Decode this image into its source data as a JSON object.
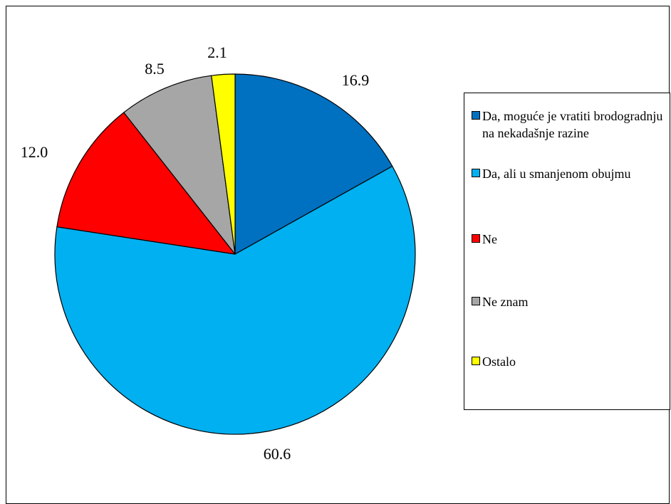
{
  "chart_data": {
    "type": "pie",
    "title": "",
    "start_angle_deg": 0,
    "direction": "clockwise",
    "slices": [
      {
        "label": "Da, moguće je vratiti brodogradnju na nekadašnje razine",
        "value": 16.9,
        "value_label": "16.9",
        "color": "#0070C0"
      },
      {
        "label": "Da, ali u smanjenom obujmu",
        "value": 60.6,
        "value_label": "60.6",
        "color": "#00B0F0"
      },
      {
        "label": "Ne",
        "value": 12.0,
        "value_label": "12.0",
        "color": "#FF0000"
      },
      {
        "label": "Ne znam",
        "value": 8.5,
        "value_label": "8.5",
        "color": "#A6A6A6"
      },
      {
        "label": "Ostalo",
        "value": 2.1,
        "value_label": "2.1",
        "color": "#FFFF00"
      }
    ],
    "legend_position": "right"
  }
}
